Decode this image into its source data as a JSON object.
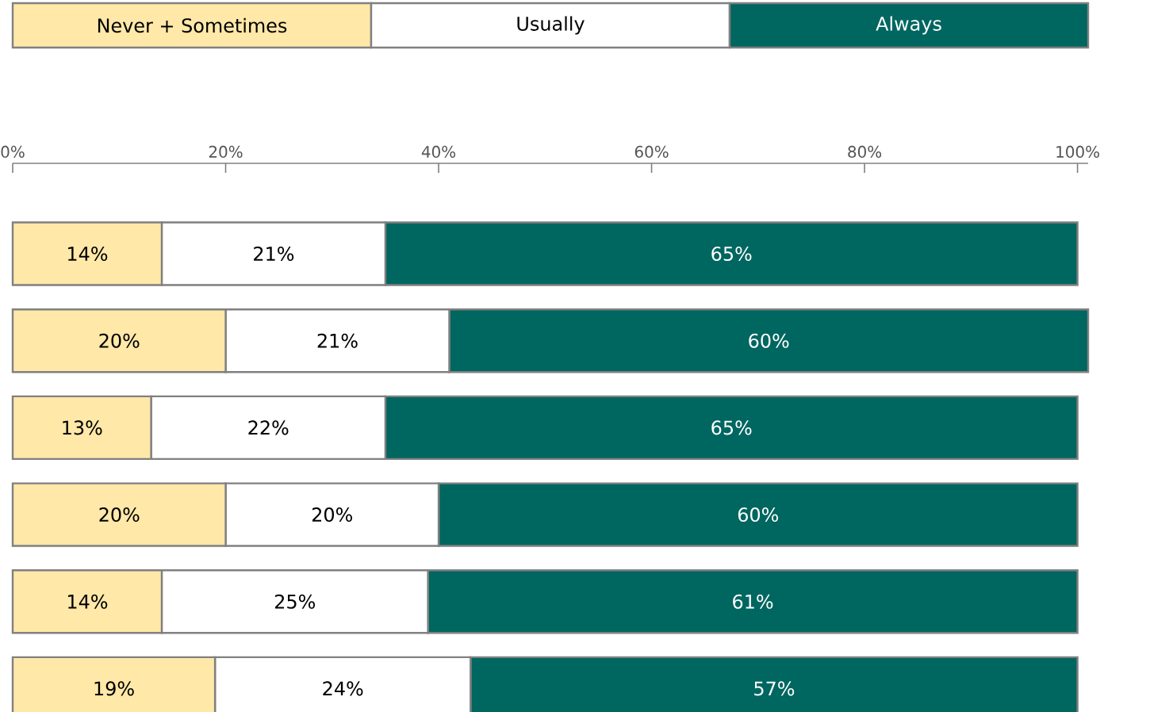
{
  "chart_data": {
    "type": "bar",
    "orientation": "horizontal",
    "stacked": true,
    "legend": "top",
    "categories": [
      null,
      null,
      null,
      null,
      null,
      null
    ],
    "series": [
      {
        "name": "Never + Sometimes",
        "color": "#ffe8a8",
        "values": [
          14,
          20,
          13,
          20,
          14,
          19
        ],
        "value_labels": [
          "14%",
          "20%",
          "13%",
          "20%",
          "14%",
          "19%"
        ]
      },
      {
        "name": "Usually",
        "color": "#ffffff",
        "values": [
          21,
          21,
          22,
          20,
          25,
          24
        ],
        "value_labels": [
          "21%",
          "21%",
          "22%",
          "20%",
          "25%",
          "24%"
        ]
      },
      {
        "name": "Always",
        "color": "#006660",
        "values": [
          65,
          60,
          65,
          60,
          61,
          57
        ],
        "value_labels": [
          "65%",
          "60%",
          "65%",
          "60%",
          "61%",
          "57%"
        ]
      }
    ],
    "xlim": [
      0,
      101
    ],
    "xticks": [
      {
        "value": 0,
        "label": "0%"
      },
      {
        "value": 20,
        "label": "20%"
      },
      {
        "value": 40,
        "label": "40%"
      },
      {
        "value": 60,
        "label": "60%"
      },
      {
        "value": 80,
        "label": "80%"
      },
      {
        "value": 100,
        "label": "100%"
      }
    ]
  }
}
